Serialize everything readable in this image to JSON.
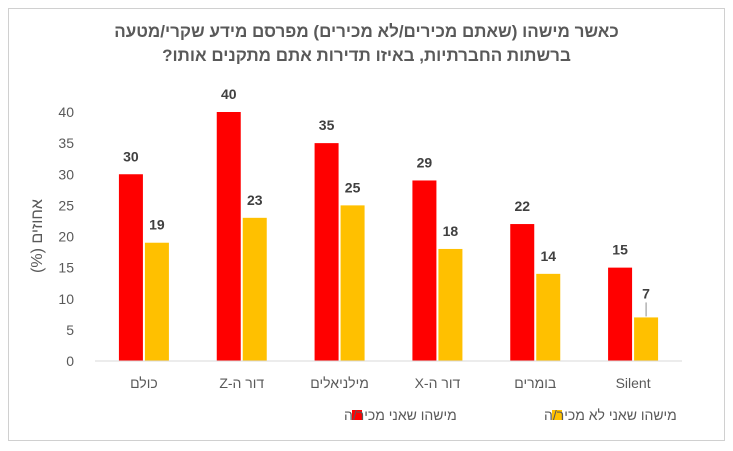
{
  "chart_data": {
    "type": "bar",
    "title": "כאשר מישהו (שאתם מכירים/לא מכירים) מפרסם מידע שקרי/מטעה",
    "subtitle": "ברשתות החברתיות, באיזו תדירות אתם מתקנים אותו?",
    "ylabel": "אחוזים (%)",
    "xlabel": "",
    "ylim": [
      0,
      40
    ],
    "yticks": [
      0,
      5,
      10,
      15,
      20,
      25,
      30,
      35,
      40
    ],
    "grid": false,
    "legend_position": "bottom",
    "categories": [
      "כולם",
      "דור ה-Z",
      "מילניאלים",
      "דור ה-X",
      "בומרים",
      "Silent"
    ],
    "series": [
      {
        "name": "מישהו שאני מכיר/ה",
        "color": "#ff0000",
        "values": [
          30,
          40,
          35,
          29,
          22,
          15
        ]
      },
      {
        "name": "מישהו שאני לא מכיר/ה",
        "color": "#ffc000",
        "values": [
          19,
          23,
          25,
          18,
          14,
          7
        ]
      }
    ]
  }
}
